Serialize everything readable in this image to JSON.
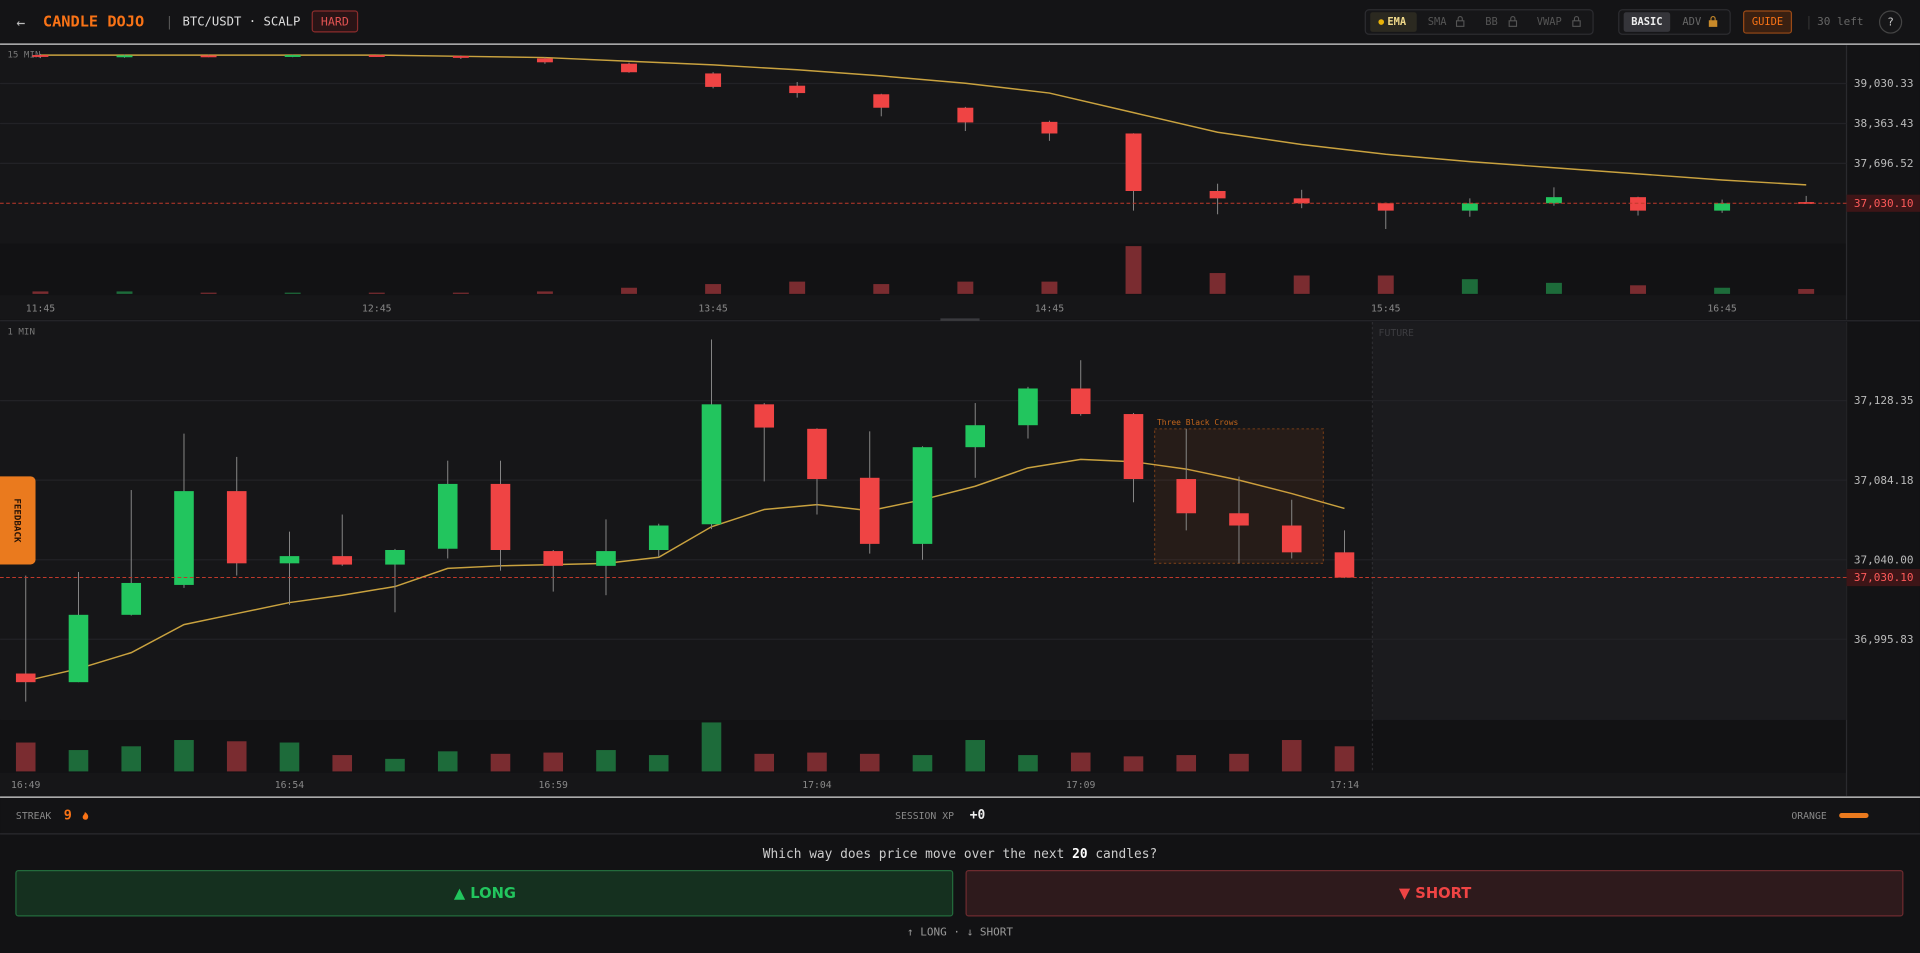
{
  "header": {
    "back": "←",
    "title": "CANDLE DOJO",
    "pair": "BTC/USDT · SCALP",
    "difficulty": "HARD",
    "indicators": [
      {
        "label": "EMA",
        "active": true
      },
      {
        "label": "SMA",
        "locked": true
      },
      {
        "label": "BB",
        "locked": true
      },
      {
        "label": "VWAP",
        "locked": true
      }
    ],
    "modes": [
      {
        "label": "BASIC",
        "active": true
      },
      {
        "label": "ADV",
        "locked": true
      }
    ],
    "guide": "GUIDE",
    "remaining": "30 left",
    "help": "?"
  },
  "charts": [
    {
      "type": "candlestick",
      "timeframe": "15 MIN",
      "up_color": "#22c55e",
      "down_color": "#ef4444",
      "ema_color": "#c9a23f",
      "categories": [
        "11:45",
        null,
        null,
        null,
        "12:45",
        null,
        null,
        null,
        "13:45",
        null,
        null,
        null,
        "14:45",
        null,
        null,
        null,
        "15:45",
        null,
        null,
        null,
        "16:45",
        null
      ],
      "candles": [
        {
          "o": 39506,
          "h": 39526,
          "l": 39455,
          "c": 39475
        },
        {
          "o": 39470,
          "h": 39515,
          "l": 39460,
          "c": 39500
        },
        {
          "o": 39500,
          "h": 39512,
          "l": 39470,
          "c": 39480
        },
        {
          "o": 39478,
          "h": 39515,
          "l": 39470,
          "c": 39505
        },
        {
          "o": 39505,
          "h": 39512,
          "l": 39475,
          "c": 39485
        },
        {
          "o": 39490,
          "h": 39500,
          "l": 39440,
          "c": 39460
        },
        {
          "o": 39450,
          "h": 39470,
          "l": 39360,
          "c": 39385
        },
        {
          "o": 39362,
          "h": 39380,
          "l": 39210,
          "c": 39219
        },
        {
          "o": 39199,
          "h": 39220,
          "l": 38950,
          "c": 38974
        },
        {
          "o": 38994,
          "h": 39056,
          "l": 38795,
          "c": 38871
        },
        {
          "o": 38851,
          "h": 38860,
          "l": 38483,
          "c": 38626
        },
        {
          "o": 38626,
          "h": 38640,
          "l": 38237,
          "c": 38380
        },
        {
          "o": 38390,
          "h": 38410,
          "l": 38073,
          "c": 38196
        },
        {
          "o": 38196,
          "h": 38200,
          "l": 36907,
          "c": 37235
        },
        {
          "o": 37235,
          "h": 37357,
          "l": 36846,
          "c": 37112
        },
        {
          "o": 37112,
          "h": 37255,
          "l": 36948,
          "c": 37030
        },
        {
          "o": 37030,
          "h": 37040,
          "l": 36600,
          "c": 36907
        },
        {
          "o": 36907,
          "h": 37112,
          "l": 36805,
          "c": 37030
        },
        {
          "o": 37030,
          "h": 37296,
          "l": 36989,
          "c": 37132
        },
        {
          "o": 37132,
          "h": 37140,
          "l": 36825,
          "c": 36907
        },
        {
          "o": 36907,
          "h": 37091,
          "l": 36870,
          "c": 37030
        },
        {
          "o": 37050,
          "h": 37153,
          "l": 37020,
          "c": 37030
        }
      ],
      "volume": [
        2,
        2,
        1,
        1,
        1,
        1,
        2,
        5,
        8,
        10,
        8,
        10,
        10,
        39,
        17,
        15,
        15,
        12,
        9,
        7,
        5,
        4
      ],
      "ema": [
        39506,
        39506,
        39506,
        39506,
        39506,
        39485,
        39465,
        39403,
        39342,
        39260,
        39158,
        39035,
        38871,
        38544,
        38217,
        38012,
        37848,
        37726,
        37623,
        37521,
        37419,
        37337
      ],
      "ylim": [
        36355,
        39669
      ],
      "yticks": [
        {
          "value": 39030.33,
          "label": "39,030.33"
        },
        {
          "value": 38363.43,
          "label": "38,363.43"
        },
        {
          "value": 37696.52,
          "label": "37,696.52"
        }
      ],
      "current_price": {
        "value": 37030.1,
        "label": "37,030.10"
      }
    },
    {
      "type": "candlestick",
      "timeframe": "1 MIN",
      "up_color": "#22c55e",
      "down_color": "#ef4444",
      "ema_color": "#c9a23f",
      "future_label": "FUTURE",
      "categories": [
        "16:49",
        null,
        null,
        null,
        null,
        "16:54",
        null,
        null,
        null,
        null,
        "16:59",
        null,
        null,
        null,
        null,
        "17:04",
        null,
        null,
        null,
        null,
        "17:09",
        null,
        null,
        null,
        null,
        "17:14"
      ],
      "candles": [
        {
          "o": 36976.8,
          "h": 37031.2,
          "l": 36961.2,
          "c": 36972.0
        },
        {
          "o": 36972.0,
          "h": 37033.2,
          "l": 36972.0,
          "c": 37009.4
        },
        {
          "o": 37009.4,
          "h": 37078.7,
          "l": 37009.0,
          "c": 37027.1
        },
        {
          "o": 37026.0,
          "h": 37110.0,
          "l": 37024.4,
          "c": 37078.1
        },
        {
          "o": 37078.1,
          "h": 37097.1,
          "l": 37031.2,
          "c": 37038.0
        },
        {
          "o": 37038.0,
          "h": 37055.6,
          "l": 37014.9,
          "c": 37042.0
        },
        {
          "o": 37042.0,
          "h": 37065.1,
          "l": 37036.6,
          "c": 37037.3
        },
        {
          "o": 37037.3,
          "h": 37046.0,
          "l": 37010.8,
          "c": 37045.4
        },
        {
          "o": 37046.1,
          "h": 37095.0,
          "l": 37040.7,
          "c": 37082.1
        },
        {
          "o": 37082.1,
          "h": 37095.0,
          "l": 37033.9,
          "c": 37045.4
        },
        {
          "o": 37044.8,
          "h": 37045.4,
          "l": 37022.3,
          "c": 37036.6
        },
        {
          "o": 37036.6,
          "h": 37062.4,
          "l": 37020.3,
          "c": 37044.8
        },
        {
          "o": 37045.4,
          "h": 37060.0,
          "l": 37041.4,
          "c": 37059.0
        },
        {
          "o": 37059.7,
          "h": 37162.3,
          "l": 37057.0,
          "c": 37126.3
        },
        {
          "o": 37126.3,
          "h": 37127.0,
          "l": 37083.5,
          "c": 37113.4
        },
        {
          "o": 37112.7,
          "h": 37113.0,
          "l": 37065.1,
          "c": 37084.8
        },
        {
          "o": 37085.5,
          "h": 37111.3,
          "l": 37043.4,
          "c": 37048.8
        },
        {
          "o": 37048.8,
          "h": 37103.0,
          "l": 37040.0,
          "c": 37102.5
        },
        {
          "o": 37102.5,
          "h": 37127.0,
          "l": 37085.5,
          "c": 37114.7
        },
        {
          "o": 37114.7,
          "h": 37136.0,
          "l": 37107.3,
          "c": 37135.1
        },
        {
          "o": 37135.1,
          "h": 37150.8,
          "l": 37120.0,
          "c": 37120.9
        },
        {
          "o": 37120.9,
          "h": 37121.5,
          "l": 37071.9,
          "c": 37084.8
        },
        {
          "o": 37084.8,
          "h": 37112.7,
          "l": 37056.3,
          "c": 37065.8
        },
        {
          "o": 37065.8,
          "h": 37086.2,
          "l": 37038.0,
          "c": 37059.0
        },
        {
          "o": 37059.0,
          "h": 37073.3,
          "l": 37040.7,
          "c": 37044.1
        },
        {
          "o": 37044.1,
          "h": 37056.3,
          "l": 37029.8,
          "c": 37030.1
        }
      ],
      "volume": [
        23,
        17,
        20,
        25,
        24,
        23,
        13,
        10,
        16,
        14,
        15,
        17,
        13,
        39,
        14,
        15,
        14,
        13,
        25,
        13,
        15,
        12,
        13,
        14,
        25,
        20
      ],
      "ema": [
        36972.7,
        36979.5,
        36988.4,
        37004.0,
        37010.1,
        37016.2,
        37020.3,
        37025.1,
        37035.2,
        37036.6,
        37037.3,
        37038.0,
        37041.4,
        37058.3,
        37067.9,
        37070.6,
        37067.2,
        37073.3,
        37080.8,
        37091.0,
        37095.7,
        37094.4,
        37090.3,
        37084.2,
        37076.7,
        37068.5
      ],
      "ylim": [
        36951,
        37172
      ],
      "yticks": [
        {
          "value": 37128.35,
          "label": "37,128.35"
        },
        {
          "value": 37084.18,
          "label": "37,084.18"
        },
        {
          "value": 37040.0,
          "label": "37,040.00"
        },
        {
          "value": 36995.83,
          "label": "36,995.83"
        }
      ],
      "current_price": {
        "value": 37030.1,
        "label": "37,030.10"
      },
      "pattern": {
        "label": "Three Black Crows",
        "candles": [
          22,
          24
        ]
      }
    }
  ],
  "status": {
    "streak_label": "STREAK",
    "streak": 9,
    "xp_label": "SESSION XP",
    "xp": "+0",
    "rank": "ORANGE"
  },
  "prompt": {
    "before": "Which way does price move over the next ",
    "count": 20,
    "after": " candles?"
  },
  "actions": {
    "long": "▲ LONG",
    "short": "▼ SHORT",
    "hint": "↑ LONG · ↓ SHORT"
  },
  "feedback": "FEEDBACK"
}
